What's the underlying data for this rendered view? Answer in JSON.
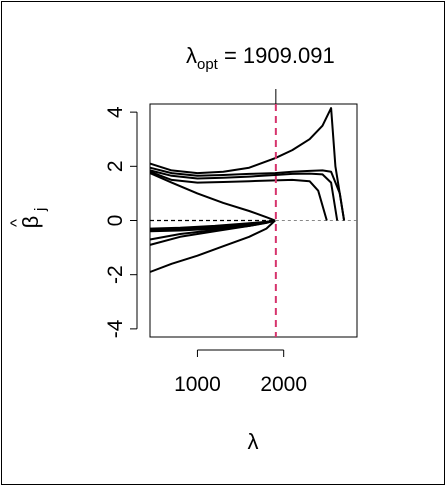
{
  "chart_data": {
    "type": "line",
    "title": {
      "symbol": "λ",
      "subscript": "opt",
      "rest": " = 1909.091"
    },
    "xlabel": "λ",
    "ylabel": {
      "base": "β",
      "hat": "^",
      "subscript": "j"
    },
    "xlim": [
      450,
      2850
    ],
    "ylim": [
      -4.3,
      4.3
    ],
    "x_ticks": [
      1000,
      2000
    ],
    "x_tick_labels": [
      "1000",
      "2000"
    ],
    "y_ticks": [
      -4,
      -2,
      0,
      2,
      4
    ],
    "y_tick_labels": [
      "-4",
      "-2",
      "0",
      "2",
      "4"
    ],
    "lambda_opt": 1909.091,
    "reference_line_y": 0,
    "colors": {
      "lines": "#000000",
      "optimum_line": "#d6336c",
      "zero_line": "#000000"
    },
    "series": [
      {
        "x": [
          450,
          700,
          1000,
          1300,
          1600,
          1900,
          2100,
          2300,
          2450,
          2550,
          2600,
          2700
        ],
        "y": [
          2.1,
          1.85,
          1.75,
          1.8,
          1.95,
          2.3,
          2.6,
          3.0,
          3.5,
          4.15,
          2.0,
          0.0
        ]
      },
      {
        "x": [
          450,
          700,
          1000,
          1300,
          1600,
          1900,
          2100,
          2300,
          2450,
          2550,
          2650,
          2700
        ],
        "y": [
          1.95,
          1.75,
          1.65,
          1.68,
          1.72,
          1.75,
          1.8,
          1.83,
          1.85,
          1.8,
          1.0,
          0.0
        ]
      },
      {
        "x": [
          450,
          700,
          1000,
          1300,
          1600,
          1900,
          2100,
          2300,
          2450,
          2550,
          2620
        ],
        "y": [
          1.85,
          1.65,
          1.55,
          1.58,
          1.62,
          1.68,
          1.72,
          1.73,
          1.7,
          1.4,
          0.0
        ]
      },
      {
        "x": [
          450,
          700,
          1000,
          1300,
          1600,
          1900,
          2100,
          2300,
          2400,
          2500
        ],
        "y": [
          1.8,
          1.5,
          1.4,
          1.42,
          1.45,
          1.48,
          1.5,
          1.45,
          1.1,
          0.0
        ]
      },
      {
        "x": [
          450,
          700,
          1000,
          1300,
          1600,
          1800,
          1900
        ],
        "y": [
          1.75,
          1.4,
          1.0,
          0.65,
          0.35,
          0.12,
          0.0
        ]
      },
      {
        "x": [
          450,
          800,
          1200,
          1600,
          1800,
          1900
        ],
        "y": [
          -0.3,
          -0.27,
          -0.2,
          -0.1,
          -0.05,
          0.0
        ]
      },
      {
        "x": [
          450,
          800,
          1200,
          1600,
          1800,
          1900
        ],
        "y": [
          -0.35,
          -0.32,
          -0.25,
          -0.12,
          -0.05,
          0.0
        ]
      },
      {
        "x": [
          450,
          800,
          1200,
          1600,
          1800,
          1900
        ],
        "y": [
          -0.4,
          -0.37,
          -0.3,
          -0.15,
          -0.07,
          0.0
        ]
      },
      {
        "x": [
          450,
          800,
          1200,
          1600,
          1800,
          1900
        ],
        "y": [
          -0.7,
          -0.5,
          -0.35,
          -0.2,
          -0.08,
          0.0
        ]
      },
      {
        "x": [
          450,
          800,
          1200,
          1600,
          1800,
          1900
        ],
        "y": [
          -0.9,
          -0.6,
          -0.4,
          -0.2,
          -0.09,
          0.0
        ]
      },
      {
        "x": [
          450,
          700,
          1000,
          1300,
          1600,
          1800,
          1900
        ],
        "y": [
          -1.9,
          -1.6,
          -1.3,
          -0.95,
          -0.6,
          -0.3,
          0.0
        ]
      }
    ]
  }
}
